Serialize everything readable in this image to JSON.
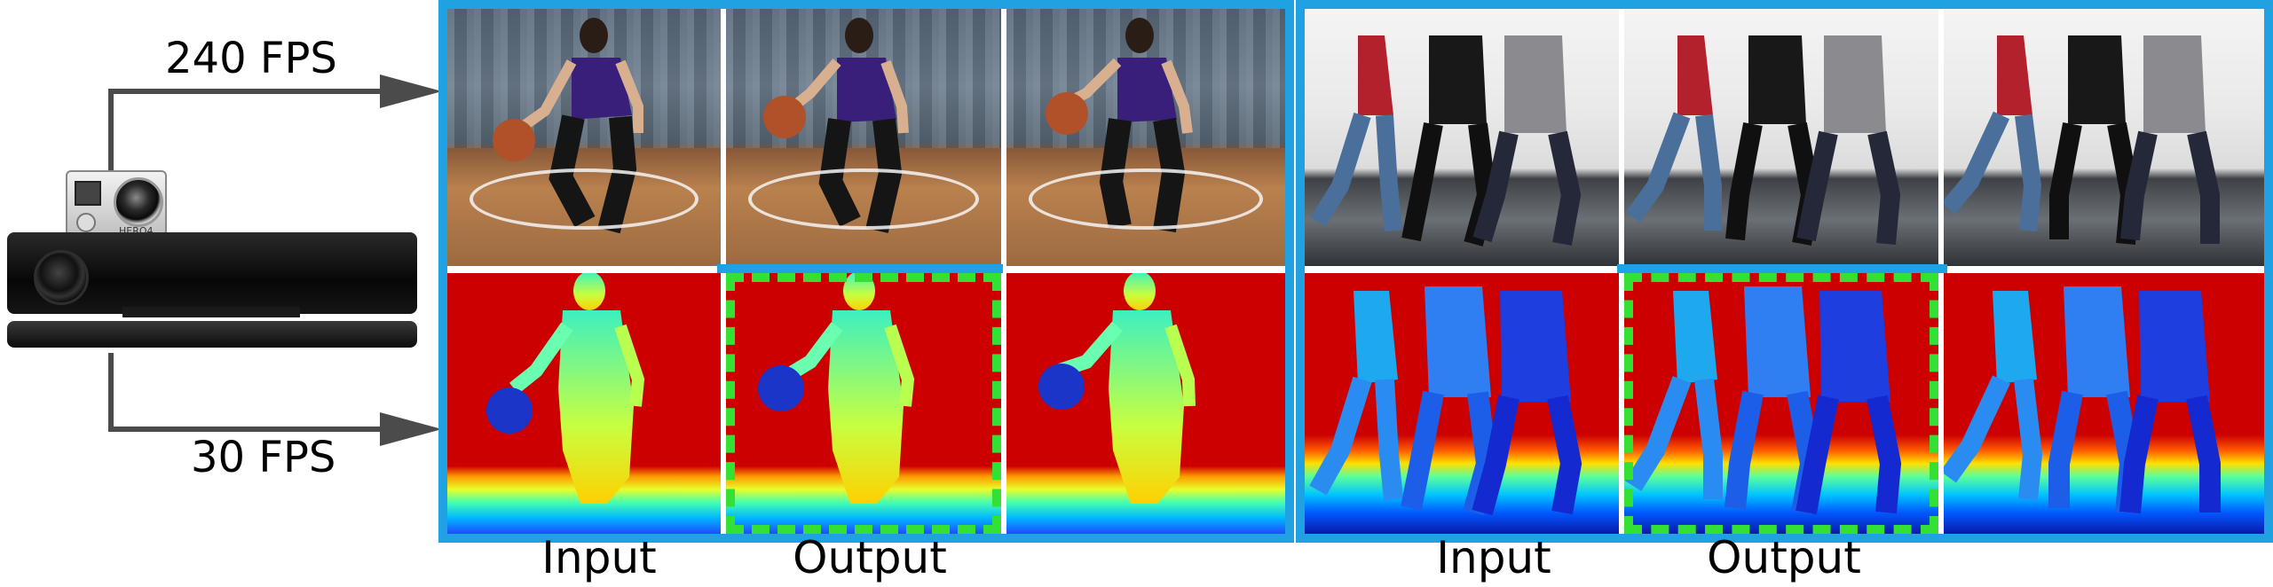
{
  "fps_high": "240 FPS",
  "fps_low": "30 FPS",
  "camera_brand": "HERO4",
  "left_panel": {
    "input_label": "Input",
    "output_label": "Output"
  },
  "right_panel": {
    "input_label": "Input",
    "output_label": "Output"
  },
  "colors": {
    "frame_blue": "#1fa1e2",
    "output_dash_green": "#33e033",
    "arrow_gray": "#4b4b4b",
    "depth_far_red": "#cc0000"
  }
}
